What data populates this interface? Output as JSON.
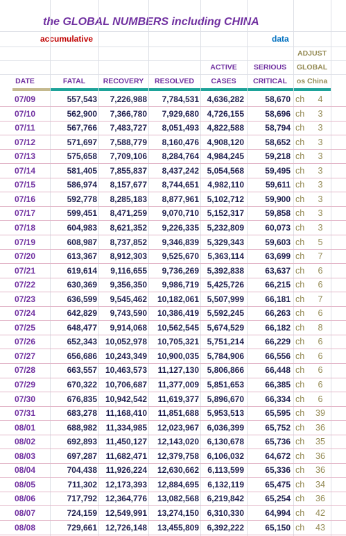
{
  "header": {
    "title": "the GLOBAL NUMBERS including CHINA",
    "subtitle": "accumulative",
    "data_label": "data"
  },
  "table": {
    "columns": [
      [
        "DATE"
      ],
      [
        "FATAL"
      ],
      [
        "RECOVERY"
      ],
      [
        "RESOLVED"
      ],
      [
        "ACTIVE",
        "CASES"
      ],
      [
        "SERIOUS",
        "CRITICAL"
      ],
      [
        "ADJUST",
        "GLOBAL",
        "os China"
      ]
    ],
    "rows": [
      [
        "07/09",
        "557,543",
        "7,226,988",
        "7,784,531",
        "4,636,282",
        "58,670",
        "ch",
        "4"
      ],
      [
        "07/10",
        "562,900",
        "7,366,780",
        "7,929,680",
        "4,726,155",
        "58,696",
        "ch",
        "3"
      ],
      [
        "07/11",
        "567,766",
        "7,483,727",
        "8,051,493",
        "4,822,588",
        "58,794",
        "ch",
        "3"
      ],
      [
        "07/12",
        "571,697",
        "7,588,779",
        "8,160,476",
        "4,908,120",
        "58,652",
        "ch",
        "3"
      ],
      [
        "07/13",
        "575,658",
        "7,709,106",
        "8,284,764",
        "4,984,245",
        "59,218",
        "ch",
        "3"
      ],
      [
        "07/14",
        "581,405",
        "7,855,837",
        "8,437,242",
        "5,054,568",
        "59,495",
        "ch",
        "3"
      ],
      [
        "07/15",
        "586,974",
        "8,157,677",
        "8,744,651",
        "4,982,110",
        "59,611",
        "ch",
        "3"
      ],
      [
        "07/16",
        "592,778",
        "8,285,183",
        "8,877,961",
        "5,102,712",
        "59,900",
        "ch",
        "3"
      ],
      [
        "07/17",
        "599,451",
        "8,471,259",
        "9,070,710",
        "5,152,317",
        "59,858",
        "ch",
        "3"
      ],
      [
        "07/18",
        "604,983",
        "8,621,352",
        "9,226,335",
        "5,232,809",
        "60,073",
        "ch",
        "3"
      ],
      [
        "07/19",
        "608,987",
        "8,737,852",
        "9,346,839",
        "5,329,343",
        "59,603",
        "ch",
        "5"
      ],
      [
        "07/20",
        "613,367",
        "8,912,303",
        "9,525,670",
        "5,363,114",
        "63,699",
        "ch",
        "7"
      ],
      [
        "07/21",
        "619,614",
        "9,116,655",
        "9,736,269",
        "5,392,838",
        "63,637",
        "ch",
        "6"
      ],
      [
        "07/22",
        "630,369",
        "9,356,350",
        "9,986,719",
        "5,425,726",
        "66,215",
        "ch",
        "6"
      ],
      [
        "07/23",
        "636,599",
        "9,545,462",
        "10,182,061",
        "5,507,999",
        "66,181",
        "ch",
        "7"
      ],
      [
        "07/24",
        "642,829",
        "9,743,590",
        "10,386,419",
        "5,592,245",
        "66,263",
        "ch",
        "6"
      ],
      [
        "07/25",
        "648,477",
        "9,914,068",
        "10,562,545",
        "5,674,529",
        "66,182",
        "ch",
        "8"
      ],
      [
        "07/26",
        "652,343",
        "10,052,978",
        "10,705,321",
        "5,751,214",
        "66,229",
        "ch",
        "6"
      ],
      [
        "07/27",
        "656,686",
        "10,243,349",
        "10,900,035",
        "5,784,906",
        "66,556",
        "ch",
        "6"
      ],
      [
        "07/28",
        "663,557",
        "10,463,573",
        "11,127,130",
        "5,806,866",
        "66,448",
        "ch",
        "6"
      ],
      [
        "07/29",
        "670,322",
        "10,706,687",
        "11,377,009",
        "5,851,653",
        "66,385",
        "ch",
        "6"
      ],
      [
        "07/30",
        "676,835",
        "10,942,542",
        "11,619,377",
        "5,896,670",
        "66,334",
        "ch",
        "6"
      ],
      [
        "07/31",
        "683,278",
        "11,168,410",
        "11,851,688",
        "5,953,513",
        "65,595",
        "ch",
        "39"
      ],
      [
        "08/01",
        "688,982",
        "11,334,985",
        "12,023,967",
        "6,036,399",
        "65,752",
        "ch",
        "36"
      ],
      [
        "08/02",
        "692,893",
        "11,450,127",
        "12,143,020",
        "6,130,678",
        "65,736",
        "ch",
        "35"
      ],
      [
        "08/03",
        "697,287",
        "11,682,471",
        "12,379,758",
        "6,106,032",
        "64,672",
        "ch",
        "36"
      ],
      [
        "08/04",
        "704,438",
        "11,926,224",
        "12,630,662",
        "6,113,599",
        "65,336",
        "ch",
        "36"
      ],
      [
        "08/05",
        "711,302",
        "12,173,393",
        "12,884,695",
        "6,132,119",
        "65,475",
        "ch",
        "34"
      ],
      [
        "08/06",
        "717,792",
        "12,364,776",
        "13,082,568",
        "6,219,842",
        "65,254",
        "ch",
        "36"
      ],
      [
        "08/07",
        "724,159",
        "12,549,991",
        "13,274,150",
        "6,310,330",
        "64,994",
        "ch",
        "42"
      ],
      [
        "08/08",
        "729,661",
        "12,726,148",
        "13,455,809",
        "6,392,222",
        "65,150",
        "ch",
        "43"
      ]
    ]
  }
}
